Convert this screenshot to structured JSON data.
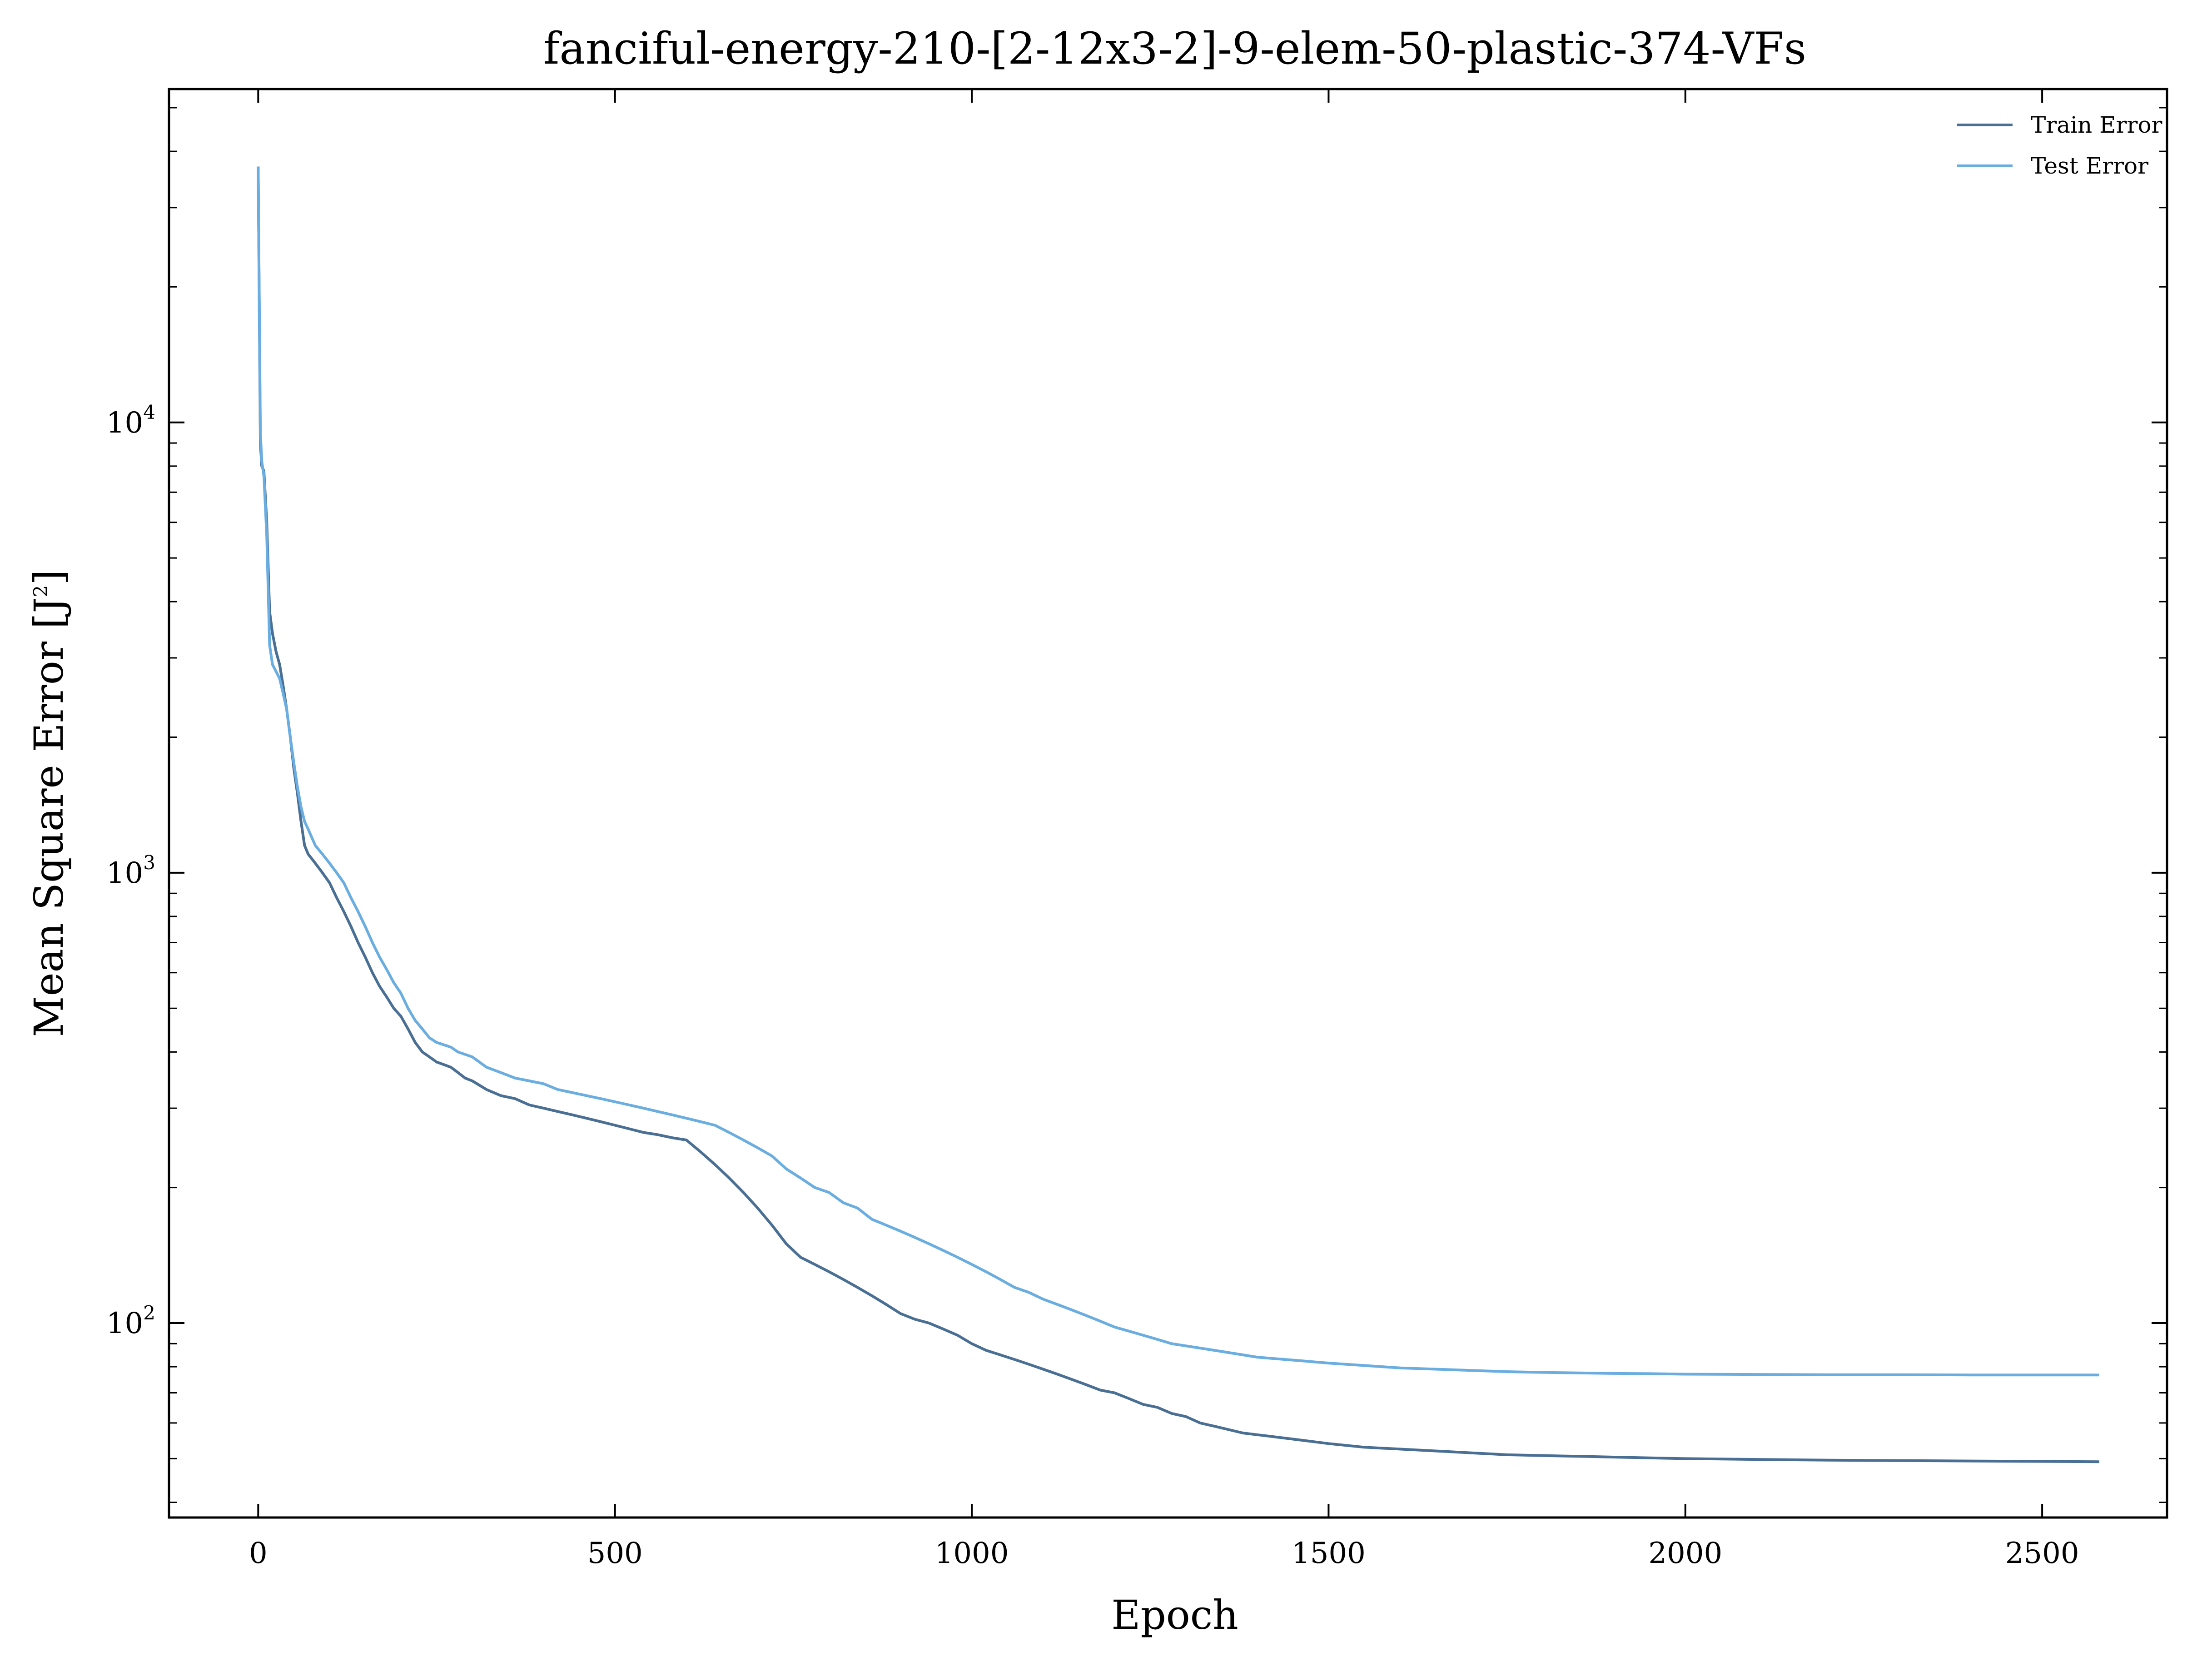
{
  "chart_data": {
    "type": "line",
    "title": "fanciful-energy-210-[2-12x3-2]-9-elem-50-plastic-374-VFs",
    "xlabel": "Epoch",
    "ylabel": "Mean Square Error [J",
    "ylabel_sup": "2",
    "ylabel_end": "]",
    "xlim": [
      -125,
      2675
    ],
    "ylim": [
      37,
      55000
    ],
    "yscale": "log",
    "grid": false,
    "legend_position": "top-right",
    "x_ticks": [
      {
        "value": 0,
        "label": "0"
      },
      {
        "value": 500,
        "label": "500"
      },
      {
        "value": 1000,
        "label": "1000"
      },
      {
        "value": 1500,
        "label": "1500"
      },
      {
        "value": 2000,
        "label": "2000"
      },
      {
        "value": 2500,
        "label": "2500"
      }
    ],
    "y_ticks": [
      {
        "value": 100,
        "base": "10",
        "exp": "2"
      },
      {
        "value": 1000,
        "base": "10",
        "exp": "3"
      },
      {
        "value": 10000,
        "base": "10",
        "exp": "4"
      }
    ],
    "series": [
      {
        "name": "Train Error",
        "color": "#4a6f94",
        "x": [
          0,
          3,
          5,
          8,
          12,
          16,
          20,
          25,
          30,
          35,
          40,
          45,
          50,
          55,
          60,
          65,
          70,
          80,
          90,
          100,
          110,
          120,
          130,
          140,
          150,
          160,
          170,
          180,
          190,
          200,
          210,
          220,
          230,
          240,
          250,
          260,
          270,
          280,
          290,
          300,
          320,
          340,
          360,
          380,
          400,
          420,
          440,
          460,
          480,
          500,
          520,
          540,
          560,
          580,
          600,
          620,
          640,
          660,
          680,
          700,
          720,
          740,
          760,
          780,
          800,
          820,
          840,
          860,
          880,
          900,
          920,
          940,
          960,
          980,
          1000,
          1020,
          1040,
          1060,
          1080,
          1100,
          1120,
          1140,
          1160,
          1180,
          1200,
          1220,
          1240,
          1260,
          1280,
          1300,
          1320,
          1340,
          1360,
          1380,
          1400,
          1420,
          1440,
          1460,
          1480,
          1500,
          1550,
          1600,
          1650,
          1700,
          1750,
          1800,
          1850,
          1900,
          1950,
          2000,
          2100,
          2200,
          2300,
          2400,
          2500,
          2580
        ],
        "y": [
          37000,
          9000,
          8000,
          7800,
          6000,
          3800,
          3400,
          3100,
          2900,
          2600,
          2300,
          2000,
          1700,
          1500,
          1300,
          1150,
          1100,
          1050,
          1000,
          950,
          880,
          820,
          760,
          700,
          650,
          600,
          560,
          530,
          500,
          480,
          450,
          420,
          400,
          390,
          380,
          375,
          370,
          360,
          350,
          345,
          330,
          320,
          315,
          305,
          300,
          295,
          290,
          285,
          280,
          275,
          270,
          265,
          262,
          258,
          255,
          240,
          225,
          210,
          195,
          180,
          165,
          150,
          140,
          135,
          130,
          125,
          120,
          115,
          110,
          105,
          102,
          100,
          97,
          94,
          90,
          87,
          85,
          83,
          81,
          79,
          77,
          75,
          73,
          71,
          70,
          68,
          66,
          65,
          63,
          62,
          60,
          59,
          58,
          57,
          56.5,
          56,
          55.5,
          55,
          54.5,
          54,
          53,
          52.5,
          52,
          51.5,
          51,
          50.8,
          50.6,
          50.4,
          50.2,
          50,
          49.8,
          49.6,
          49.5,
          49.4,
          49.3,
          49.2
        ]
      },
      {
        "name": "Test Error",
        "color": "#6aade0",
        "x": [
          0,
          3,
          5,
          8,
          12,
          16,
          20,
          25,
          30,
          35,
          40,
          45,
          50,
          55,
          60,
          65,
          70,
          80,
          90,
          100,
          110,
          120,
          130,
          140,
          150,
          160,
          170,
          180,
          190,
          200,
          210,
          220,
          230,
          240,
          250,
          260,
          270,
          280,
          290,
          300,
          320,
          340,
          360,
          380,
          400,
          420,
          440,
          460,
          480,
          500,
          520,
          540,
          560,
          580,
          600,
          620,
          640,
          660,
          680,
          700,
          720,
          740,
          760,
          780,
          800,
          820,
          840,
          860,
          880,
          900,
          920,
          940,
          960,
          980,
          1000,
          1020,
          1040,
          1060,
          1080,
          1100,
          1120,
          1140,
          1160,
          1180,
          1200,
          1220,
          1240,
          1260,
          1280,
          1300,
          1320,
          1340,
          1360,
          1380,
          1400,
          1420,
          1440,
          1460,
          1480,
          1500,
          1550,
          1600,
          1650,
          1700,
          1750,
          1800,
          1850,
          1900,
          1950,
          2000,
          2100,
          2200,
          2300,
          2400,
          2500,
          2580
        ],
        "y": [
          37000,
          9500,
          8200,
          7600,
          5600,
          3200,
          2900,
          2800,
          2700,
          2500,
          2300,
          2000,
          1750,
          1550,
          1400,
          1300,
          1250,
          1150,
          1100,
          1050,
          1000,
          950,
          880,
          820,
          760,
          700,
          650,
          610,
          570,
          540,
          500,
          470,
          450,
          430,
          420,
          415,
          410,
          400,
          395,
          390,
          370,
          360,
          350,
          345,
          340,
          330,
          325,
          320,
          315,
          310,
          305,
          300,
          295,
          290,
          285,
          280,
          275,
          265,
          255,
          245,
          235,
          220,
          210,
          200,
          195,
          185,
          180,
          170,
          165,
          160,
          155,
          150,
          145,
          140,
          135,
          130,
          125,
          120,
          117,
          113,
          110,
          107,
          104,
          101,
          98,
          96,
          94,
          92,
          90,
          89,
          88,
          87,
          86,
          85,
          84,
          83.5,
          83,
          82.5,
          82,
          81.5,
          80.5,
          79.5,
          79,
          78.5,
          78,
          77.7,
          77.5,
          77.3,
          77.2,
          77,
          76.9,
          76.8,
          76.8,
          76.7,
          76.7,
          76.7
        ]
      }
    ]
  }
}
